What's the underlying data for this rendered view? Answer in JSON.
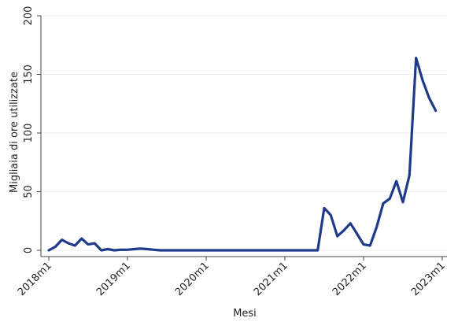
{
  "chart_data": {
    "type": "line",
    "title": "",
    "xlabel": "Mesi",
    "ylabel": "Migliaia di ore utilizzate",
    "ylim": [
      0,
      200
    ],
    "yticks": [
      0,
      50,
      100,
      150,
      200
    ],
    "xlim": [
      0,
      60
    ],
    "xticks": [
      {
        "x": 0,
        "label": "2018m1"
      },
      {
        "x": 12,
        "label": "2019m1"
      },
      {
        "x": 24,
        "label": "2020m1"
      },
      {
        "x": 36,
        "label": "2021m1"
      },
      {
        "x": 48,
        "label": "2022m1"
      },
      {
        "x": 60,
        "label": "2023m1"
      }
    ],
    "grid": true,
    "legend": "none",
    "series": [
      {
        "color": "#1f3a8a",
        "x": [
          0,
          1,
          2,
          3,
          4,
          5,
          6,
          7,
          8,
          9,
          10,
          11,
          12,
          13,
          14,
          15,
          16,
          17,
          18,
          19,
          20,
          21,
          22,
          23,
          24,
          25,
          26,
          27,
          28,
          29,
          30,
          31,
          32,
          33,
          34,
          35,
          36,
          37,
          38,
          39,
          40,
          41,
          42,
          43,
          44,
          45,
          46,
          47,
          48,
          49,
          50,
          51,
          52,
          53,
          54,
          55,
          56,
          57,
          58,
          59
        ],
        "values": [
          0,
          3,
          9,
          6,
          4,
          10,
          5,
          6,
          0,
          1,
          0,
          0.5,
          0.5,
          1,
          1.5,
          1,
          0.5,
          0,
          0,
          0,
          0,
          0,
          0,
          0,
          0,
          0,
          0,
          0,
          0,
          0,
          0,
          0,
          0,
          0,
          0,
          0,
          0,
          0,
          0,
          0,
          0,
          0,
          36,
          30,
          12,
          17,
          23,
          14,
          5,
          4,
          20,
          40,
          44,
          59,
          41,
          64,
          164,
          145,
          130,
          119
        ]
      }
    ]
  }
}
